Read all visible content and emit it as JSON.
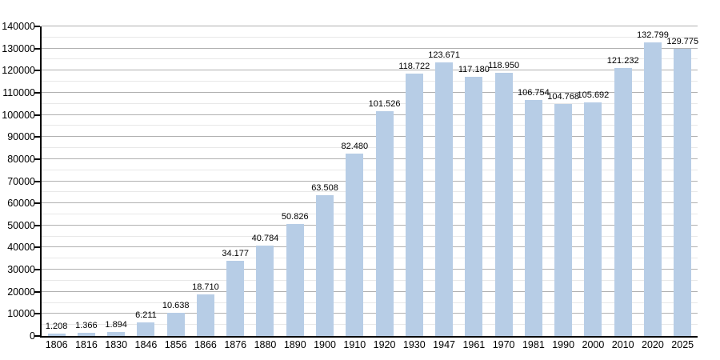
{
  "chart_data": {
    "type": "bar",
    "title": "",
    "xlabel": "",
    "ylabel": "",
    "categories": [
      "1806",
      "1816",
      "1830",
      "1846",
      "1856",
      "1866",
      "1876",
      "1880",
      "1890",
      "1900",
      "1910",
      "1920",
      "1930",
      "1947",
      "1961",
      "1970",
      "1981",
      "1990",
      "2000",
      "2010",
      "2020",
      "2025"
    ],
    "values": [
      1208,
      1366,
      1894,
      6211,
      10638,
      18710,
      34177,
      40784,
      50826,
      63508,
      82480,
      101526,
      118722,
      123671,
      117180,
      118950,
      106754,
      104768,
      105692,
      121232,
      132799,
      129775
    ],
    "value_labels": [
      "1.208",
      "1.366",
      "1.894",
      "6.211",
      "10.638",
      "18.710",
      "34.177",
      "40.784",
      "50.826",
      "63.508",
      "82.480",
      "101.526",
      "118.722",
      "123.671",
      "117.180",
      "118.950",
      "106.754",
      "104.768",
      "105.692",
      "121.232",
      "132.799",
      "129.775"
    ],
    "ylim": [
      0,
      140000
    ],
    "y_major_step": 10000,
    "y_minor_step": 5000,
    "y_tick_labels": [
      "0",
      "10000",
      "20000",
      "30000",
      "40000",
      "50000",
      "60000",
      "70000",
      "80000",
      "90000",
      "100000",
      "110000",
      "120000",
      "130000",
      "140000"
    ],
    "grid": "on",
    "legend": null,
    "colors": {
      "bar_fill": "#b7cde6",
      "major_grid": "#b0b0b0",
      "minor_grid": "#e8e8e8",
      "axis": "#000000",
      "text": "#000000",
      "background": "#ffffff"
    }
  }
}
